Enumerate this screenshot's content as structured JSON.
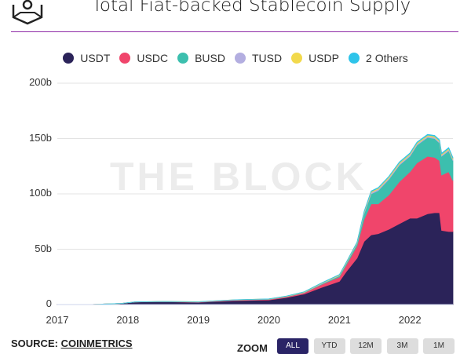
{
  "header": {
    "title": "Total Fiat-backed Stablecoin Supply",
    "watermark": "THE BLOCK"
  },
  "footer": {
    "source_label": "SOURCE:",
    "source_link": "COINMETRICS",
    "zoom_label": "ZOOM",
    "zoom_buttons": [
      {
        "label": "ALL",
        "active": true
      },
      {
        "label": "YTD"
      },
      {
        "label": "12M"
      },
      {
        "label": "3M"
      },
      {
        "label": "1M"
      }
    ]
  },
  "chart_data": {
    "type": "area",
    "stacked": true,
    "title": "Total Fiat-backed Stablecoin Supply",
    "xlabel": "",
    "ylabel": "",
    "ylim": [
      0,
      200
    ],
    "xlim": [
      2017.0,
      2022.61
    ],
    "yticks": [
      "0",
      "50b",
      "100b",
      "150b",
      "200b"
    ],
    "xticks": [
      "2017",
      "2018",
      "2019",
      "2020",
      "2021",
      "2022"
    ],
    "legend_position": "top-center",
    "x": [
      2017.0,
      2017.5,
      2017.9,
      2018.1,
      2018.5,
      2019.0,
      2019.5,
      2020.0,
      2020.25,
      2020.5,
      2020.75,
      2021.0,
      2021.1,
      2021.25,
      2021.35,
      2021.45,
      2021.55,
      2021.7,
      2021.85,
      2022.0,
      2022.1,
      2022.25,
      2022.35,
      2022.42,
      2022.45,
      2022.55,
      2022.61
    ],
    "series": [
      {
        "name": "USDT",
        "color": "#2b2359",
        "values": [
          0.01,
          0.1,
          1.0,
          2.3,
          2.6,
          2.0,
          3.5,
          4.1,
          6.3,
          9.5,
          15.5,
          21,
          30,
          42,
          57,
          63,
          64,
          68,
          73,
          78,
          78,
          82,
          83,
          83,
          67,
          66,
          66
        ]
      },
      {
        "name": "USDC",
        "color": "#f0456b",
        "values": [
          0,
          0,
          0,
          0,
          0.1,
          0.25,
          0.4,
          0.5,
          0.7,
          1.1,
          2.7,
          4,
          6,
          11,
          20,
          28,
          27,
          31,
          38,
          42,
          50,
          52,
          50,
          47,
          50,
          54,
          46
        ]
      },
      {
        "name": "BUSD",
        "color": "#3cbfae",
        "values": [
          0,
          0,
          0,
          0,
          0,
          0,
          0.05,
          0.2,
          0.2,
          0.2,
          0.5,
          1,
          1.5,
          2,
          5,
          9,
          12,
          14,
          15,
          14,
          16,
          17,
          17,
          16,
          17,
          19,
          18
        ]
      },
      {
        "name": "TUSD",
        "color": "#b3aee0",
        "values": [
          0,
          0,
          0,
          0.05,
          0.1,
          0.2,
          0.2,
          0.15,
          0.2,
          0.3,
          0.4,
          0.4,
          0.4,
          0.5,
          0.9,
          1.2,
          1.3,
          1.3,
          1.2,
          1.3,
          1.2,
          1.1,
          1.1,
          1.1,
          1.1,
          1.1,
          1.1
        ]
      },
      {
        "name": "USDP",
        "color": "#f2d94c",
        "values": [
          0,
          0,
          0,
          0,
          0.05,
          0.1,
          0.1,
          0.15,
          0.2,
          0.3,
          0.4,
          0.5,
          0.5,
          0.6,
          0.8,
          0.9,
          0.9,
          1.0,
          1.0,
          1.0,
          1.0,
          1.0,
          1.0,
          1.0,
          1.0,
          1.0,
          1.0
        ]
      },
      {
        "name": "2 Others",
        "color": "#2ec4ea",
        "values": [
          0,
          0,
          0,
          0,
          0,
          0,
          0,
          0.05,
          0.1,
          0.1,
          0.2,
          0.2,
          0.2,
          0.3,
          0.4,
          0.5,
          0.5,
          0.5,
          0.6,
          0.6,
          0.6,
          0.7,
          0.7,
          0.7,
          0.7,
          0.7,
          0.7
        ]
      }
    ]
  }
}
